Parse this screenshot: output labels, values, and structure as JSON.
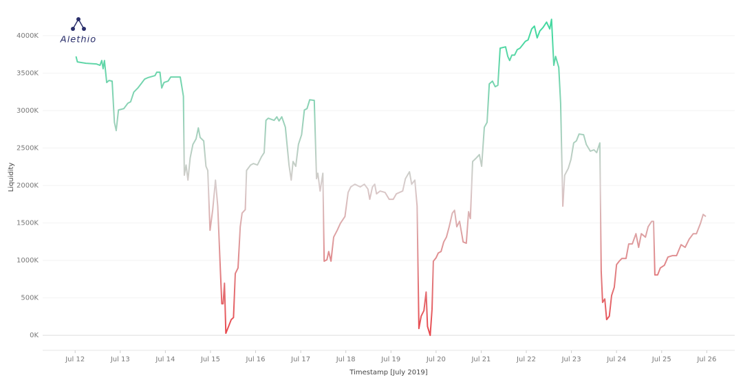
{
  "chart_data": {
    "type": "line",
    "logo": "Alethio",
    "x_label": "Timestamp [July 2019]",
    "y_label": "Liquidity",
    "x": [
      12.02,
      12.05,
      12.24,
      12.47,
      12.55,
      12.59,
      12.62,
      12.65,
      12.7,
      12.75,
      12.82,
      12.87,
      12.91,
      12.96,
      13.08,
      13.17,
      13.23,
      13.3,
      13.39,
      13.46,
      13.54,
      13.61,
      13.77,
      13.81,
      13.88,
      13.92,
      13.97,
      14.06,
      14.12,
      14.33,
      14.4,
      14.42,
      14.46,
      14.5,
      14.55,
      14.61,
      14.68,
      14.73,
      14.77,
      14.85,
      14.9,
      14.94,
      14.99,
      15.05,
      15.11,
      15.16,
      15.22,
      15.25,
      15.28,
      15.31,
      15.34,
      15.4,
      15.46,
      15.51,
      15.55,
      15.61,
      15.66,
      15.7,
      15.77,
      15.8,
      15.89,
      15.95,
      16.04,
      16.13,
      16.19,
      16.23,
      16.28,
      16.41,
      16.47,
      16.52,
      16.58,
      16.66,
      16.74,
      16.79,
      16.83,
      16.89,
      16.95,
      17.02,
      17.08,
      17.14,
      17.2,
      17.3,
      17.35,
      17.38,
      17.43,
      17.49,
      17.52,
      17.58,
      17.62,
      17.67,
      17.73,
      17.81,
      17.88,
      17.98,
      18.05,
      18.11,
      18.2,
      18.32,
      18.41,
      18.49,
      18.53,
      18.59,
      18.64,
      18.68,
      18.76,
      18.87,
      18.96,
      19.05,
      19.12,
      19.26,
      19.32,
      19.41,
      19.46,
      19.53,
      19.58,
      19.62,
      19.67,
      19.73,
      19.78,
      19.81,
      19.87,
      19.91,
      19.94,
      20.0,
      20.05,
      20.11,
      20.17,
      20.23,
      20.29,
      20.36,
      20.41,
      20.46,
      20.52,
      20.6,
      20.67,
      20.72,
      20.76,
      20.81,
      20.89,
      20.96,
      21.01,
      21.07,
      21.13,
      21.18,
      21.25,
      21.31,
      21.37,
      21.42,
      21.54,
      21.59,
      21.63,
      21.68,
      21.74,
      21.8,
      21.86,
      21.92,
      21.98,
      22.04,
      22.12,
      22.18,
      22.24,
      22.3,
      22.37,
      22.45,
      22.52,
      22.56,
      22.61,
      22.65,
      22.72,
      22.76,
      22.81,
      22.85,
      22.93,
      22.99,
      23.05,
      23.11,
      23.17,
      23.27,
      23.33,
      23.42,
      23.5,
      23.56,
      23.63,
      23.66,
      23.69,
      23.74,
      23.78,
      23.84,
      23.89,
      23.95,
      24.0,
      24.06,
      24.12,
      24.21,
      24.27,
      24.35,
      24.43,
      24.49,
      24.55,
      24.64,
      24.7,
      24.78,
      24.82,
      24.85,
      24.91,
      24.97,
      25.06,
      25.14,
      25.24,
      25.33,
      25.43,
      25.52,
      25.61,
      25.7,
      25.77,
      25.86,
      25.92,
      25.98
    ],
    "values": [
      3723,
      3650,
      3631,
      3622,
      3604,
      3668,
      3558,
      3668,
      3375,
      3402,
      3393,
      2843,
      2733,
      3008,
      3026,
      3099,
      3118,
      3246,
      3301,
      3356,
      3420,
      3439,
      3466,
      3512,
      3512,
      3301,
      3375,
      3393,
      3448,
      3448,
      3191,
      2137,
      2274,
      2072,
      2366,
      2549,
      2623,
      2769,
      2641,
      2595,
      2256,
      2201,
      1403,
      1678,
      2072,
      1724,
      853,
      422,
      422,
      697,
      28,
      119,
      211,
      238,
      825,
      899,
      1449,
      1632,
      1678,
      2201,
      2274,
      2293,
      2274,
      2384,
      2439,
      2870,
      2898,
      2870,
      2916,
      2861,
      2916,
      2778,
      2274,
      2072,
      2320,
      2256,
      2549,
      2678,
      3008,
      3026,
      3145,
      3136,
      2091,
      2164,
      1926,
      2164,
      990,
      1009,
      1119,
      990,
      1311,
      1403,
      1495,
      1586,
      1907,
      1981,
      2017,
      1981,
      2017,
      1953,
      1816,
      1981,
      2017,
      1889,
      1926,
      1907,
      1816,
      1816,
      1889,
      1926,
      2091,
      2183,
      2017,
      2072,
      1724,
      92,
      257,
      330,
      578,
      119,
      0,
      348,
      990,
      1036,
      1100,
      1119,
      1247,
      1311,
      1449,
      1632,
      1669,
      1449,
      1522,
      1247,
      1229,
      1651,
      1559,
      2320,
      2366,
      2412,
      2256,
      2778,
      2843,
      3356,
      3393,
      3319,
      3338,
      3833,
      3851,
      3723,
      3668,
      3741,
      3741,
      3814,
      3833,
      3879,
      3925,
      3943,
      4090,
      4127,
      3971,
      4062,
      4108,
      4181,
      4090,
      4218,
      3604,
      3723,
      3576,
      3099,
      1724,
      2137,
      2228,
      2347,
      2568,
      2595,
      2687,
      2678,
      2549,
      2458,
      2476,
      2439,
      2568,
      853,
      440,
      486,
      211,
      257,
      532,
      642,
      944,
      990,
      1027,
      1027,
      1220,
      1220,
      1357,
      1174,
      1357,
      1311,
      1449,
      1522,
      1522,
      807,
      807,
      899,
      935,
      1045,
      1064,
      1064,
      1210,
      1174,
      1284,
      1357,
      1357,
      1495,
      1614,
      1586
    ],
    "xlim": [
      11.28,
      26.62
    ],
    "xticks": [
      {
        "value": 12,
        "label": "Jul 12"
      },
      {
        "value": 13,
        "label": "Jul 13"
      },
      {
        "value": 14,
        "label": "Jul 14"
      },
      {
        "value": 15,
        "label": "Jul 15"
      },
      {
        "value": 16,
        "label": "Jul 16"
      },
      {
        "value": 17,
        "label": "Jul 17"
      },
      {
        "value": 18,
        "label": "Jul 18"
      },
      {
        "value": 19,
        "label": "Jul 19"
      },
      {
        "value": 20,
        "label": "Jul 20"
      },
      {
        "value": 21,
        "label": "Jul 21"
      },
      {
        "value": 22,
        "label": "Jul 22"
      },
      {
        "value": 23,
        "label": "Jul 23"
      },
      {
        "value": 24,
        "label": "Jul 24"
      },
      {
        "value": 25,
        "label": "Jul 25"
      },
      {
        "value": 26,
        "label": "Jul 26"
      }
    ],
    "ylim": [
      -200,
      4430
    ],
    "yticks": [
      {
        "value": 0,
        "label": "0K"
      },
      {
        "value": 500,
        "label": "500K"
      },
      {
        "value": 1000,
        "label": "1000K"
      },
      {
        "value": 1500,
        "label": "1500K"
      },
      {
        "value": 2000,
        "label": "2000K"
      },
      {
        "value": 2500,
        "label": "2500K"
      },
      {
        "value": 3000,
        "label": "3000K"
      },
      {
        "value": 3500,
        "label": "3500K"
      },
      {
        "value": 4000,
        "label": "4000K"
      }
    ],
    "grid": true,
    "colors": {
      "low": "#e8474c",
      "mid": "#d8cccc",
      "high": "#45d8a0"
    }
  }
}
